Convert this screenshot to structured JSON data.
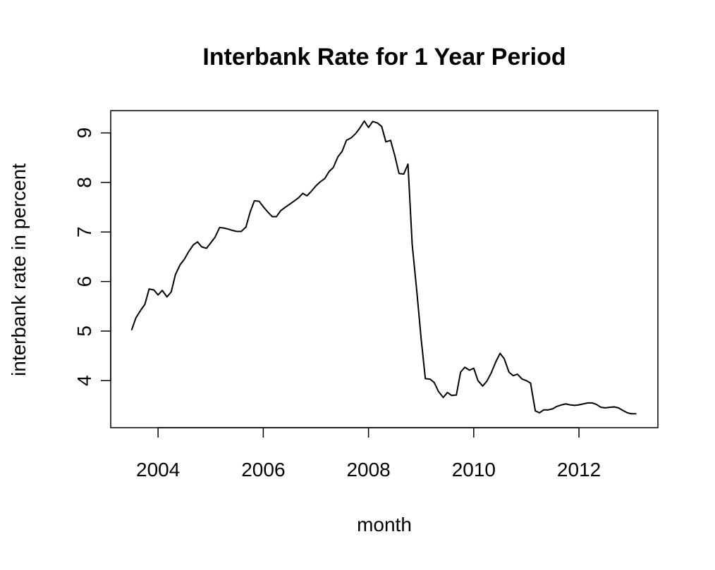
{
  "chart_data": {
    "type": "line",
    "title": "Interbank Rate for 1 Year Period",
    "xlabel": "month",
    "ylabel": "interbank rate in percent",
    "xlim": [
      2003.1,
      2013.5
    ],
    "ylim": [
      3.05,
      9.45
    ],
    "x_ticks": [
      {
        "value": 2004,
        "label": "2004"
      },
      {
        "value": 2006,
        "label": "2006"
      },
      {
        "value": 2008,
        "label": "2008"
      },
      {
        "value": 2010,
        "label": "2010"
      },
      {
        "value": 2012,
        "label": "2012"
      }
    ],
    "y_ticks": [
      {
        "value": 4,
        "label": "4"
      },
      {
        "value": 5,
        "label": "5"
      },
      {
        "value": 6,
        "label": "6"
      },
      {
        "value": 7,
        "label": "7"
      },
      {
        "value": 8,
        "label": "8"
      },
      {
        "value": 9,
        "label": "9"
      }
    ],
    "grid": false,
    "series": [
      {
        "color": "#000000",
        "points": [
          [
            2003.5,
            5.03
          ],
          [
            2003.58,
            5.27
          ],
          [
            2003.67,
            5.42
          ],
          [
            2003.75,
            5.54
          ],
          [
            2003.83,
            5.85
          ],
          [
            2003.92,
            5.83
          ],
          [
            2004.0,
            5.73
          ],
          [
            2004.08,
            5.82
          ],
          [
            2004.17,
            5.69
          ],
          [
            2004.25,
            5.79
          ],
          [
            2004.33,
            6.14
          ],
          [
            2004.42,
            6.34
          ],
          [
            2004.5,
            6.45
          ],
          [
            2004.58,
            6.6
          ],
          [
            2004.67,
            6.74
          ],
          [
            2004.75,
            6.8
          ],
          [
            2004.83,
            6.7
          ],
          [
            2004.92,
            6.67
          ],
          [
            2005.0,
            6.78
          ],
          [
            2005.08,
            6.89
          ],
          [
            2005.17,
            7.09
          ],
          [
            2005.25,
            7.08
          ],
          [
            2005.33,
            7.06
          ],
          [
            2005.42,
            7.03
          ],
          [
            2005.5,
            7.01
          ],
          [
            2005.58,
            7.01
          ],
          [
            2005.67,
            7.1
          ],
          [
            2005.75,
            7.4
          ],
          [
            2005.83,
            7.63
          ],
          [
            2005.92,
            7.62
          ],
          [
            2006.0,
            7.51
          ],
          [
            2006.08,
            7.41
          ],
          [
            2006.17,
            7.31
          ],
          [
            2006.25,
            7.31
          ],
          [
            2006.33,
            7.43
          ],
          [
            2006.42,
            7.5
          ],
          [
            2006.5,
            7.56
          ],
          [
            2006.58,
            7.62
          ],
          [
            2006.67,
            7.69
          ],
          [
            2006.75,
            7.78
          ],
          [
            2006.83,
            7.73
          ],
          [
            2006.92,
            7.83
          ],
          [
            2007.0,
            7.93
          ],
          [
            2007.08,
            8.01
          ],
          [
            2007.17,
            8.08
          ],
          [
            2007.25,
            8.22
          ],
          [
            2007.33,
            8.3
          ],
          [
            2007.42,
            8.52
          ],
          [
            2007.5,
            8.63
          ],
          [
            2007.58,
            8.85
          ],
          [
            2007.67,
            8.9
          ],
          [
            2007.75,
            8.98
          ],
          [
            2007.83,
            9.09
          ],
          [
            2007.92,
            9.24
          ],
          [
            2008.0,
            9.11
          ],
          [
            2008.08,
            9.23
          ],
          [
            2008.17,
            9.2
          ],
          [
            2008.25,
            9.13
          ],
          [
            2008.33,
            8.82
          ],
          [
            2008.42,
            8.85
          ],
          [
            2008.5,
            8.54
          ],
          [
            2008.58,
            8.18
          ],
          [
            2008.67,
            8.17
          ],
          [
            2008.75,
            8.37
          ],
          [
            2008.83,
            6.75
          ],
          [
            2008.92,
            5.78
          ],
          [
            2009.0,
            4.85
          ],
          [
            2009.08,
            4.04
          ],
          [
            2009.17,
            4.03
          ],
          [
            2009.25,
            3.96
          ],
          [
            2009.33,
            3.78
          ],
          [
            2009.42,
            3.66
          ],
          [
            2009.5,
            3.76
          ],
          [
            2009.58,
            3.7
          ],
          [
            2009.67,
            3.71
          ],
          [
            2009.75,
            4.17
          ],
          [
            2009.83,
            4.27
          ],
          [
            2009.92,
            4.21
          ],
          [
            2010.0,
            4.25
          ],
          [
            2010.08,
            4.0
          ],
          [
            2010.17,
            3.89
          ],
          [
            2010.25,
            3.99
          ],
          [
            2010.33,
            4.15
          ],
          [
            2010.42,
            4.38
          ],
          [
            2010.5,
            4.55
          ],
          [
            2010.58,
            4.44
          ],
          [
            2010.67,
            4.17
          ],
          [
            2010.75,
            4.1
          ],
          [
            2010.83,
            4.13
          ],
          [
            2010.92,
            4.03
          ],
          [
            2011.0,
            4.0
          ],
          [
            2011.08,
            3.95
          ],
          [
            2011.17,
            3.39
          ],
          [
            2011.25,
            3.35
          ],
          [
            2011.33,
            3.41
          ],
          [
            2011.42,
            3.41
          ],
          [
            2011.5,
            3.43
          ],
          [
            2011.58,
            3.48
          ],
          [
            2011.67,
            3.51
          ],
          [
            2011.75,
            3.53
          ],
          [
            2011.83,
            3.51
          ],
          [
            2011.92,
            3.5
          ],
          [
            2012.0,
            3.51
          ],
          [
            2012.08,
            3.53
          ],
          [
            2012.17,
            3.55
          ],
          [
            2012.25,
            3.55
          ],
          [
            2012.33,
            3.52
          ],
          [
            2012.42,
            3.46
          ],
          [
            2012.5,
            3.45
          ],
          [
            2012.58,
            3.46
          ],
          [
            2012.67,
            3.47
          ],
          [
            2012.75,
            3.45
          ],
          [
            2012.83,
            3.4
          ],
          [
            2012.92,
            3.35
          ],
          [
            2013.0,
            3.33
          ],
          [
            2013.08,
            3.33
          ]
        ]
      }
    ]
  }
}
